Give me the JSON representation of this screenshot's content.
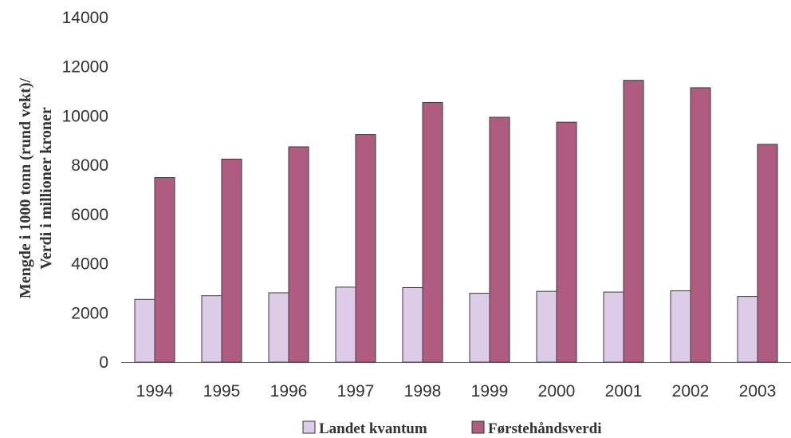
{
  "chart_data": {
    "type": "bar",
    "categories": [
      "1994",
      "1995",
      "1996",
      "1997",
      "1998",
      "1999",
      "2000",
      "2001",
      "2002",
      "2003"
    ],
    "series": [
      {
        "name": "Landet kvantum",
        "color": "#dccce8",
        "values": [
          2550,
          2700,
          2820,
          3050,
          3030,
          2800,
          2880,
          2850,
          2900,
          2670
        ]
      },
      {
        "name": "Førstehåndsverdi",
        "color": "#b05c80",
        "values": [
          7500,
          8250,
          8750,
          9250,
          10550,
          9950,
          9750,
          11450,
          11150,
          8850
        ]
      }
    ],
    "ylabel_line1": "Mengde i 1000 tonn (rund vekt)/",
    "ylabel_line2": "Verdi i millioner kroner",
    "ylim": [
      0,
      14000
    ],
    "yticks": [
      0,
      2000,
      4000,
      6000,
      8000,
      10000,
      12000,
      14000
    ],
    "grid": false,
    "legend_position": "bottom"
  }
}
